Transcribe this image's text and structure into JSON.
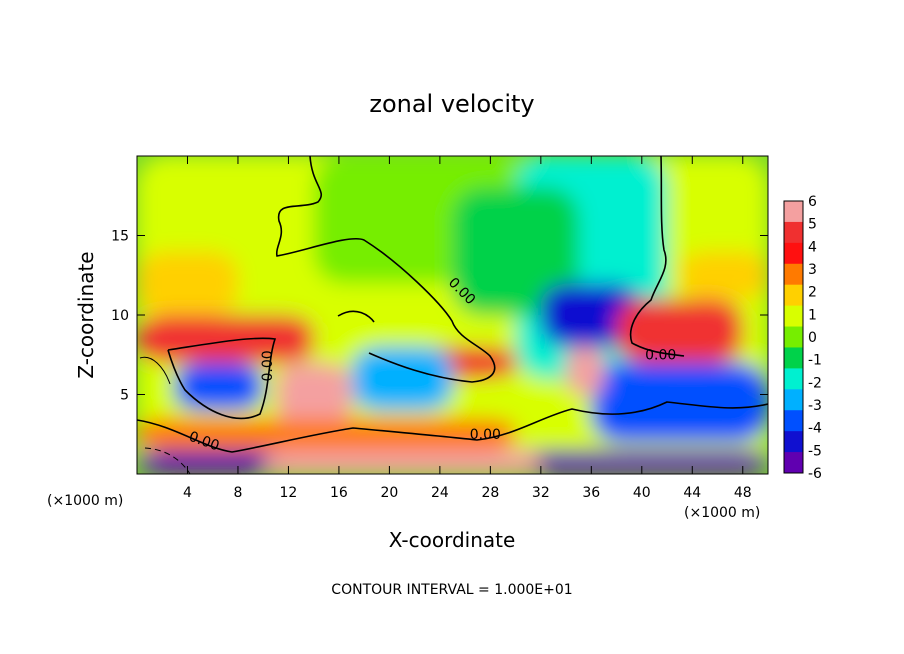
{
  "chart_data": {
    "type": "heatmap",
    "title": "zonal velocity",
    "xlabel": "X-coordinate",
    "ylabel": "Z-coordinate",
    "x_units": "(×1000 m)",
    "x_units_right": "(×1000 m)",
    "xlim": [
      0,
      50
    ],
    "ylim": [
      0,
      20
    ],
    "x_ticks": [
      4,
      8,
      12,
      16,
      20,
      24,
      28,
      32,
      36,
      40,
      44,
      48
    ],
    "y_ticks": [
      5,
      10,
      15
    ],
    "colorbar": {
      "ticks": [
        6,
        5,
        4,
        3,
        2,
        1,
        0,
        -1,
        -2,
        -3,
        -4,
        -5,
        -6
      ],
      "range": [
        -6,
        6
      ],
      "colors": [
        "#f4a0a0",
        "#f03030",
        "#ff1010",
        "#ff7a00",
        "#ffd000",
        "#d8ff00",
        "#76ee00",
        "#00d24a",
        "#00f0d0",
        "#00b0ff",
        "#0050ff",
        "#1010d0",
        "#6000b0"
      ]
    },
    "contour_labels": [
      {
        "text": "0.00",
        "x": 25.5,
        "z": 11.3,
        "rotation": 45
      },
      {
        "text": "0.00",
        "x": 10.7,
        "z": 6.8,
        "rotation": -90
      },
      {
        "text": "0.00",
        "x": 5.2,
        "z": 1.8,
        "rotation": 20
      },
      {
        "text": "0.00",
        "x": 27.6,
        "z": 2.2,
        "rotation": 0
      },
      {
        "text": "0.00",
        "x": 41.5,
        "z": 7.2,
        "rotation": 0
      }
    ],
    "regions": [
      {
        "value": 1,
        "x": [
          0,
          50
        ],
        "z": [
          0,
          20
        ]
      },
      {
        "value": 0,
        "x": [
          14,
          36
        ],
        "z": [
          12,
          20
        ]
      },
      {
        "value": -2,
        "x": [
          30,
          42
        ],
        "z": [
          6,
          20
        ]
      },
      {
        "value": -1,
        "x": [
          25,
          35
        ],
        "z": [
          10,
          18
        ]
      },
      {
        "value": 2,
        "x": [
          0,
          8
        ],
        "z": [
          10,
          14
        ]
      },
      {
        "value": 2,
        "x": [
          43,
          50
        ],
        "z": [
          11,
          14
        ]
      },
      {
        "value": -5,
        "x": [
          32,
          40
        ],
        "z": [
          8,
          12
        ]
      },
      {
        "value": 5,
        "x": [
          0,
          14
        ],
        "z": [
          7,
          10
        ]
      },
      {
        "value": 5,
        "x": [
          22,
          30
        ],
        "z": [
          6,
          8
        ]
      },
      {
        "value": 5,
        "x": [
          38,
          48
        ],
        "z": [
          7,
          11
        ]
      },
      {
        "value": -4,
        "x": [
          3,
          10
        ],
        "z": [
          4,
          7
        ]
      },
      {
        "value": 6,
        "x": [
          11,
          17
        ],
        "z": [
          3,
          7
        ]
      },
      {
        "value": -3,
        "x": [
          17,
          25
        ],
        "z": [
          4,
          8
        ]
      },
      {
        "value": -4,
        "x": [
          36,
          50
        ],
        "z": [
          2,
          7
        ]
      },
      {
        "value": 6,
        "x": [
          34,
          37
        ],
        "z": [
          5,
          8
        ]
      },
      {
        "value": -6,
        "x": [
          0,
          50
        ],
        "z": [
          0,
          1.5
        ]
      },
      {
        "value": 6,
        "x": [
          10,
          32
        ],
        "z": [
          0,
          1.5
        ]
      },
      {
        "value": 3,
        "x": [
          0,
          30
        ],
        "z": [
          1.5,
          3.5
        ]
      }
    ]
  },
  "note": "CONTOUR INTERVAL = 1.000E+01"
}
